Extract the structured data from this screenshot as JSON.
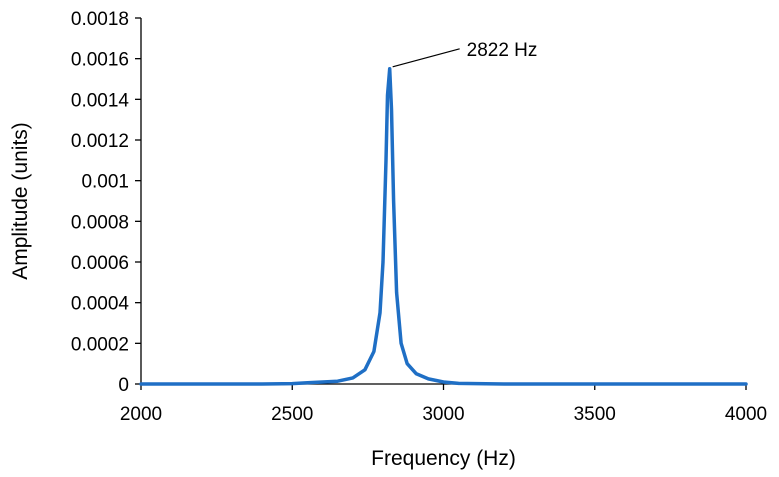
{
  "chart_data": {
    "type": "line",
    "title": "",
    "xlabel": "Frequency (Hz)",
    "ylabel": "Amplitude (units)",
    "xlim": [
      2000,
      4000
    ],
    "ylim": [
      0,
      0.0018
    ],
    "x_ticks": [
      "2000",
      "2500",
      "3000",
      "3500",
      "4000"
    ],
    "y_ticks": [
      "0",
      "0.0002",
      "0.0004",
      "0.0006",
      "0.0008",
      "0.001",
      "0.0012",
      "0.0014",
      "0.0016",
      "0.0018"
    ],
    "grid": false,
    "legend": "none",
    "series": [
      {
        "color": "#1f6fc5",
        "x": [
          2000,
          2200,
          2400,
          2500,
          2550,
          2600,
          2650,
          2700,
          2740,
          2770,
          2790,
          2800,
          2810,
          2815,
          2822,
          2828,
          2835,
          2845,
          2860,
          2880,
          2910,
          2950,
          3000,
          3050,
          3200,
          3500,
          4000
        ],
        "y": [
          0,
          0,
          0,
          2e-06,
          6e-06,
          1e-05,
          1.4e-05,
          3e-05,
          7e-05,
          0.00016,
          0.00035,
          0.0006,
          0.0011,
          0.00142,
          0.00155,
          0.00135,
          0.0009,
          0.00045,
          0.0002,
          0.0001,
          5e-05,
          2.5e-05,
          1e-05,
          3e-06,
          0,
          0,
          0
        ]
      }
    ],
    "annotations": [
      {
        "text": "2822 Hz",
        "x": 2822,
        "y": 0.00155
      }
    ]
  }
}
